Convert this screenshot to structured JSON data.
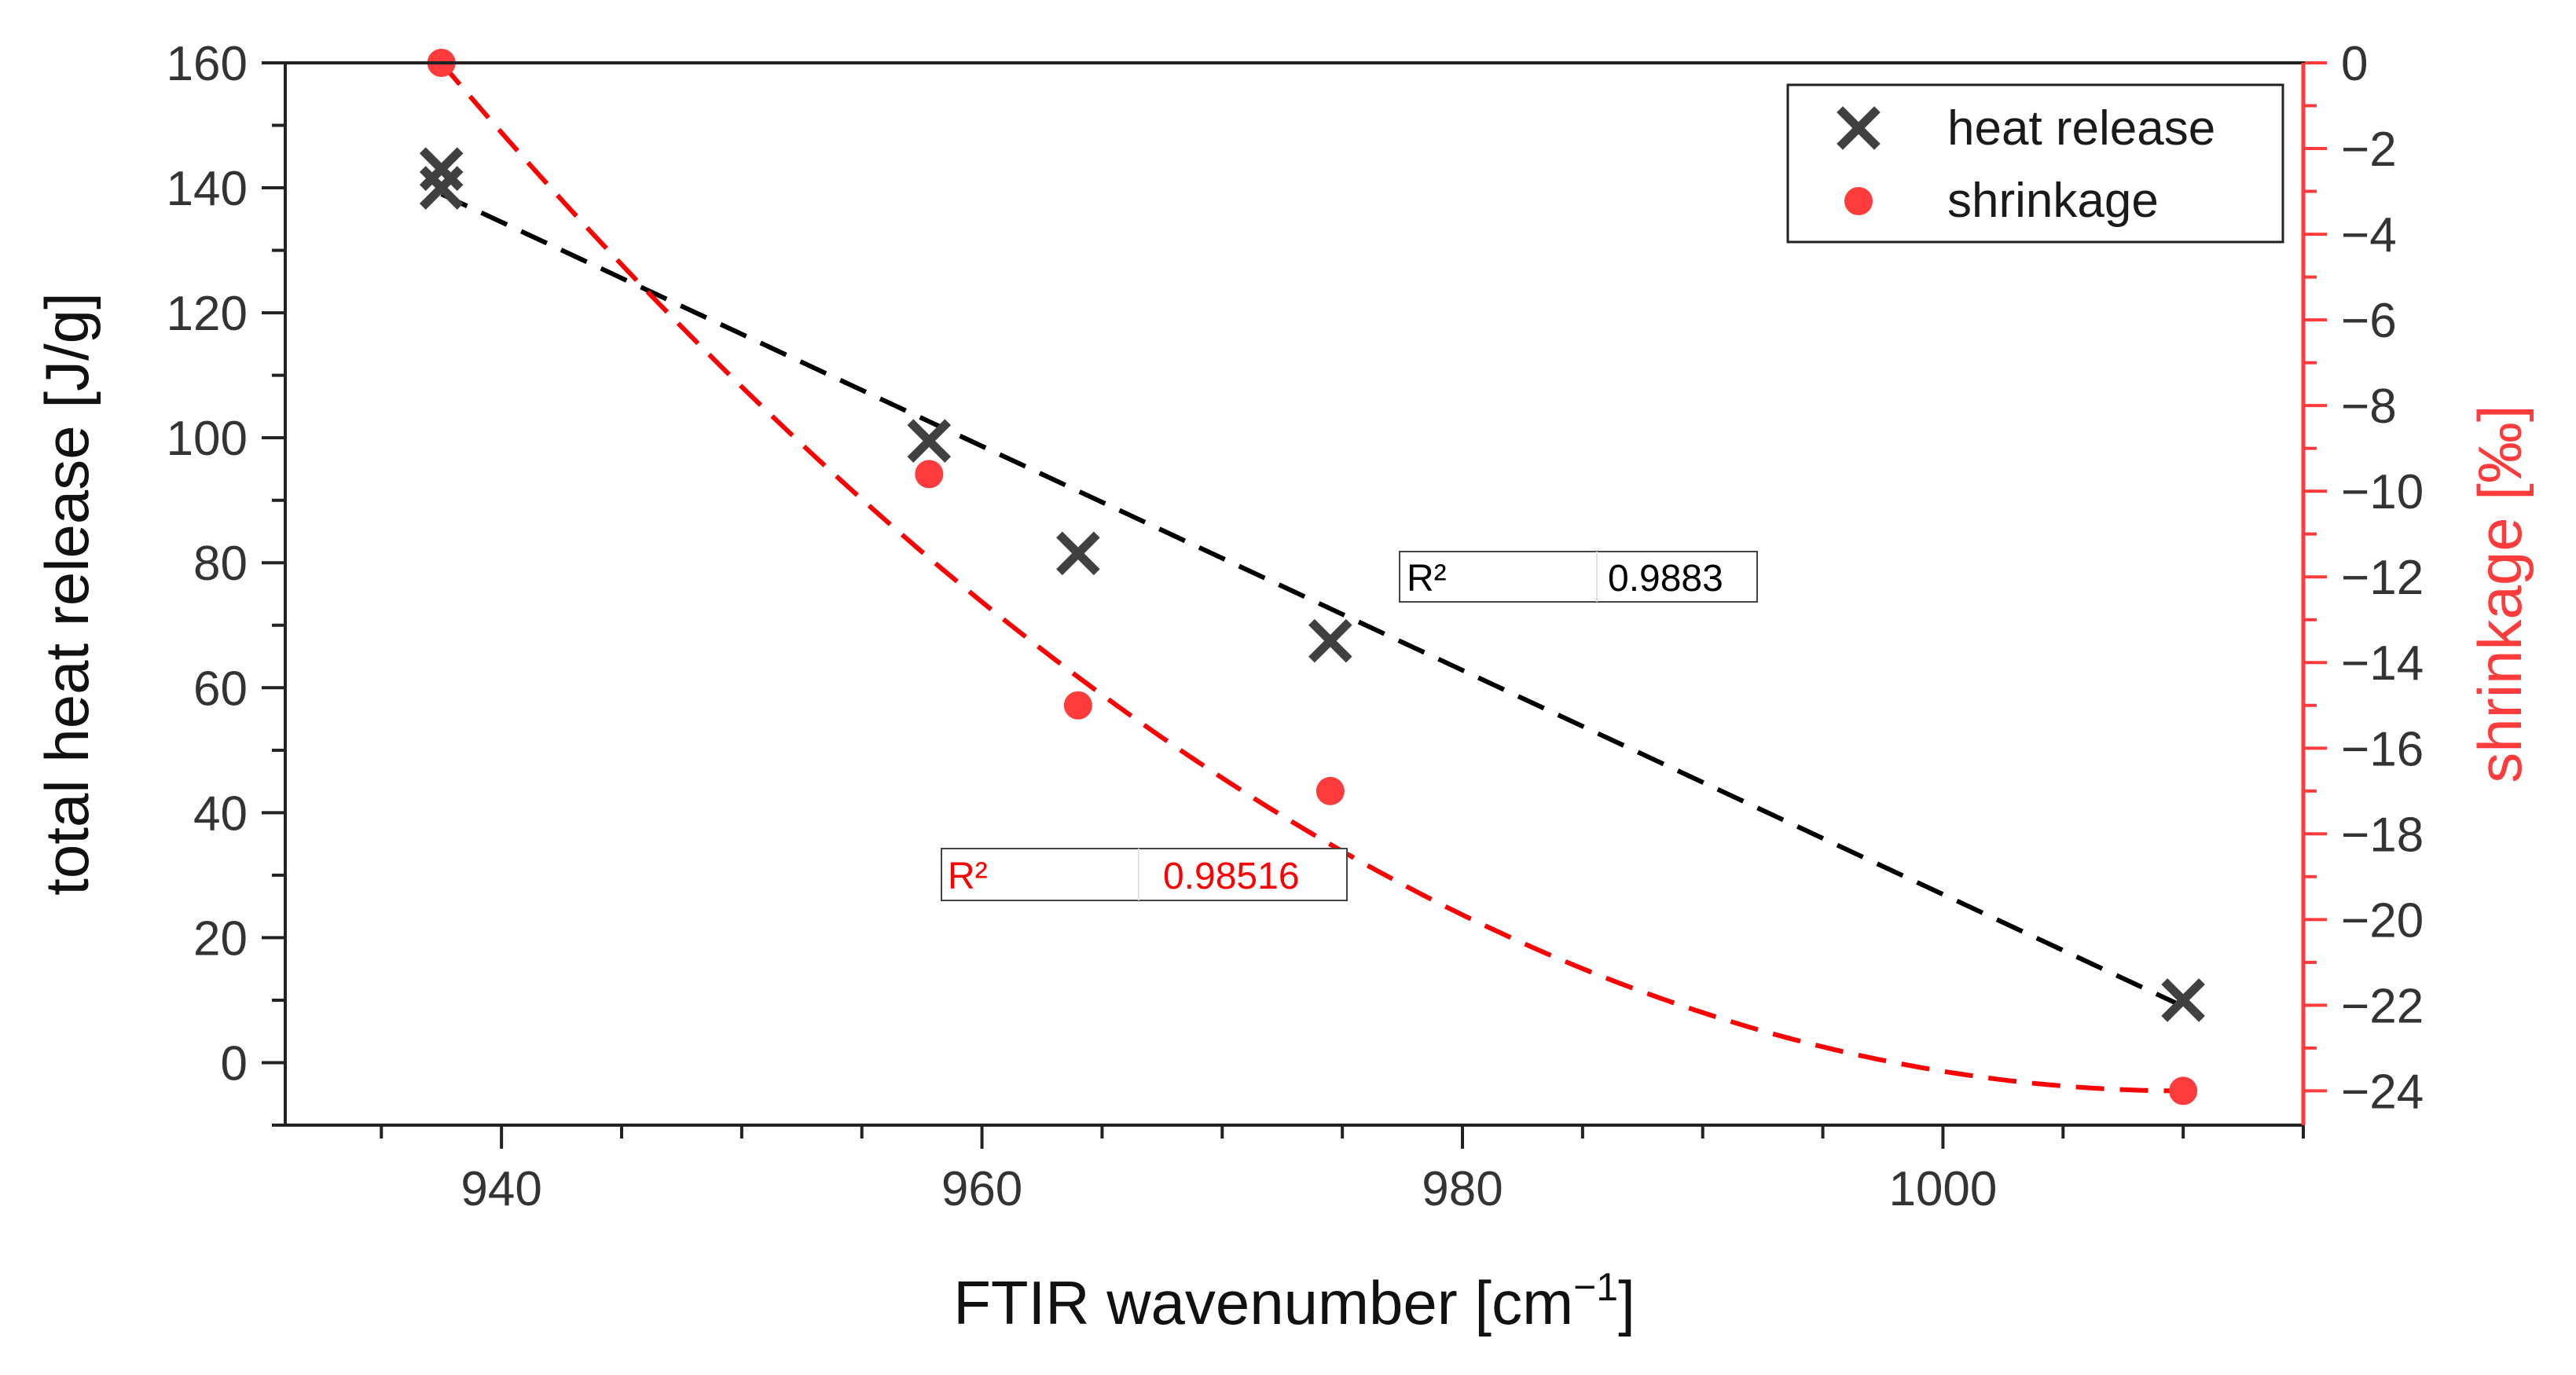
{
  "chart_data": {
    "type": "scatter",
    "xlabel": "FTIR wavenumber [cm",
    "xlabel_sup": "−1",
    "xlabel_end": "]",
    "ylabel_left": "total heat release [J/g]",
    "ylabel_right": "shrinkage [‰]",
    "xlim": [
      931,
      1015
    ],
    "ylim_left": [
      -10,
      160
    ],
    "ylim_right": [
      -24.8,
      0
    ],
    "x_ticks": [
      940,
      960,
      980,
      1000
    ],
    "y_left_ticks": [
      0,
      20,
      40,
      60,
      80,
      100,
      120,
      140,
      160
    ],
    "y_right_ticks": [
      0,
      -2,
      -4,
      -6,
      -8,
      -10,
      -12,
      -14,
      -16,
      -18,
      -20,
      -22,
      -24
    ],
    "legend_position": "top-right",
    "colors": {
      "heat": "#404040",
      "shrink": "#ff3b3b",
      "heat_fit": "#000000",
      "shrink_fit": "#ff0000",
      "right_axis": "#ff3b3b"
    },
    "series": [
      {
        "name": "heat release",
        "axis": "left",
        "marker": "x",
        "points": [
          [
            937.5,
            143
          ],
          [
            937.5,
            140
          ],
          [
            957.8,
            99.5
          ],
          [
            964,
            81.5
          ],
          [
            974.5,
            67.5
          ],
          [
            1010,
            10
          ]
        ],
        "fit": {
          "type": "linear",
          "x0": 937.5,
          "y0": 139,
          "x1": 1010,
          "y1": 9,
          "r2_label": "R²",
          "r2_value": "0.9883"
        }
      },
      {
        "name": "shrinkage",
        "axis": "right",
        "marker": "circle",
        "points": [
          [
            937.5,
            0
          ],
          [
            957.8,
            -9.6
          ],
          [
            964,
            -15
          ],
          [
            974.5,
            -17
          ],
          [
            1010,
            -24
          ]
        ],
        "fit": {
          "type": "quadratic",
          "x0": 937.5,
          "y0": 0,
          "vertex_x": 1010,
          "vertex_y": -24,
          "r2_label": "R²",
          "r2_value": "0.98516"
        }
      }
    ]
  }
}
